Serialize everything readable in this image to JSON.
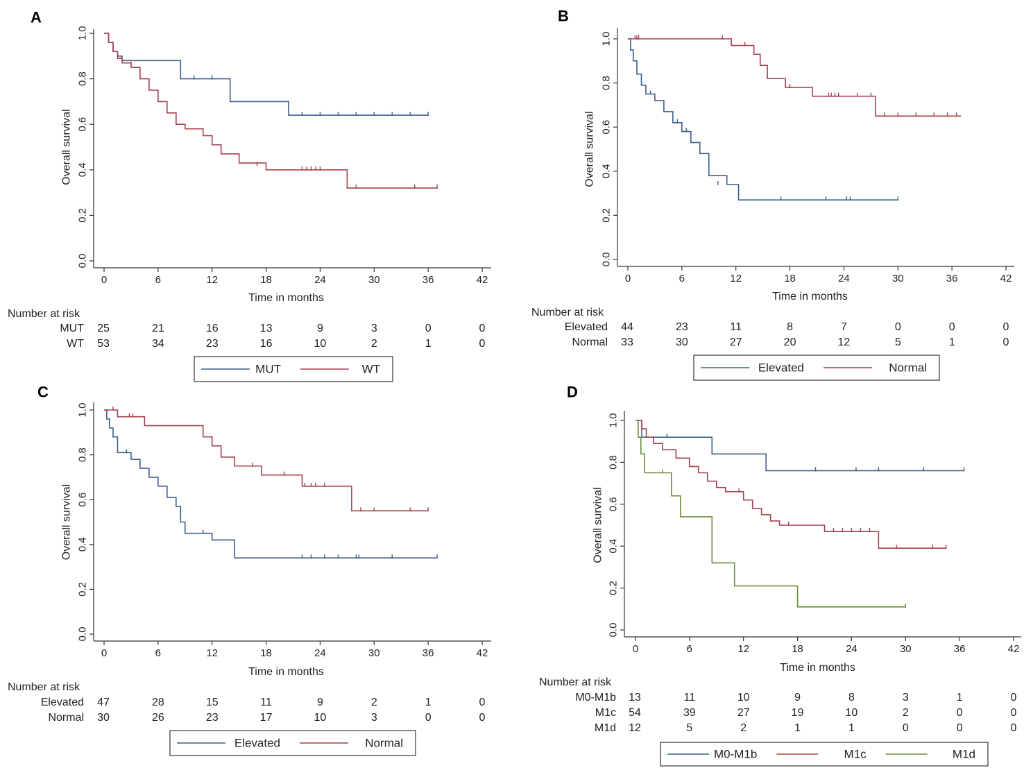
{
  "figure": {
    "x_ticks": [
      0,
      6,
      12,
      18,
      24,
      30,
      36,
      42
    ],
    "y_ticks": [
      "0.0",
      "0.2",
      "0.4",
      "0.6",
      "0.8",
      "1.0"
    ],
    "xlabel": "Time in months",
    "ylabel": "Overall survival",
    "risk_title": "Number at risk"
  },
  "colors": {
    "blue": "#3b5f8a",
    "red": "#a5404f",
    "green": "#6f8c3c"
  },
  "chart_data": [
    {
      "panel": "A",
      "type": "line",
      "xlim": [
        0,
        42
      ],
      "ylim": [
        0,
        1
      ],
      "series": [
        {
          "name": "MUT",
          "color": "blue",
          "x": [
            0,
            0.5,
            1.0,
            1.5,
            2.0,
            8.5,
            14.0,
            20.5,
            36.0
          ],
          "y": [
            1.0,
            0.96,
            0.92,
            0.9,
            0.88,
            0.8,
            0.7,
            0.64,
            0.64
          ],
          "censored": [
            [
              10,
              0.8
            ],
            [
              12,
              0.8
            ],
            [
              22,
              0.64
            ],
            [
              24,
              0.64
            ],
            [
              26,
              0.64
            ],
            [
              28,
              0.64
            ],
            [
              30,
              0.64
            ],
            [
              32,
              0.64
            ],
            [
              34,
              0.64
            ],
            [
              36,
              0.64
            ]
          ]
        },
        {
          "name": "WT",
          "color": "red",
          "x": [
            0,
            0.5,
            1.0,
            1.5,
            2.0,
            3.0,
            4.0,
            5.0,
            6.0,
            7.0,
            8.0,
            9.0,
            11.0,
            12.0,
            13.0,
            15.0,
            18.0,
            27.0,
            37.0
          ],
          "y": [
            1.0,
            0.96,
            0.92,
            0.89,
            0.87,
            0.85,
            0.8,
            0.75,
            0.7,
            0.65,
            0.6,
            0.58,
            0.55,
            0.51,
            0.47,
            0.43,
            0.4,
            0.32,
            0.32
          ],
          "censored": [
            [
              3,
              0.86
            ],
            [
              17,
              0.42
            ],
            [
              22,
              0.4
            ],
            [
              22.5,
              0.4
            ],
            [
              23,
              0.4
            ],
            [
              23.5,
              0.4
            ],
            [
              24,
              0.4
            ],
            [
              28,
              0.32
            ],
            [
              34.5,
              0.32
            ],
            [
              37,
              0.32
            ]
          ]
        }
      ],
      "risk_table": [
        {
          "label": "MUT",
          "values": [
            25,
            21,
            16,
            13,
            9,
            3,
            0,
            0
          ]
        },
        {
          "label": "WT",
          "values": [
            53,
            34,
            23,
            16,
            10,
            2,
            1,
            0
          ]
        }
      ]
    },
    {
      "panel": "B",
      "type": "line",
      "xlim": [
        0,
        42
      ],
      "ylim": [
        0,
        1
      ],
      "series": [
        {
          "name": "Elevated",
          "color": "blue",
          "x": [
            0,
            0.3,
            0.6,
            1.0,
            1.5,
            2.0,
            3.0,
            4.0,
            5.0,
            6.0,
            7.0,
            8.0,
            9.0,
            11.0,
            12.3,
            30.0
          ],
          "y": [
            1.0,
            0.95,
            0.9,
            0.84,
            0.79,
            0.75,
            0.72,
            0.67,
            0.62,
            0.58,
            0.53,
            0.48,
            0.38,
            0.34,
            0.27,
            0.27
          ],
          "censored": [
            [
              2.5,
              0.75
            ],
            [
              5.5,
              0.62
            ],
            [
              6.5,
              0.58
            ],
            [
              10,
              0.34
            ],
            [
              17,
              0.27
            ],
            [
              22,
              0.27
            ],
            [
              24.3,
              0.27
            ],
            [
              24.7,
              0.27
            ],
            [
              30,
              0.27
            ]
          ]
        },
        {
          "name": "Normal",
          "color": "red",
          "x": [
            0,
            11.5,
            14.0,
            14.7,
            15.5,
            17.5,
            20.5,
            27.5,
            37.0
          ],
          "y": [
            1.0,
            0.97,
            0.93,
            0.88,
            0.82,
            0.78,
            0.74,
            0.65,
            0.65
          ],
          "censored": [
            [
              0.8,
              1.0
            ],
            [
              1.0,
              1.0
            ],
            [
              1.2,
              1.0
            ],
            [
              10.5,
              1.0
            ],
            [
              13,
              0.97
            ],
            [
              18,
              0.78
            ],
            [
              22.3,
              0.74
            ],
            [
              22.6,
              0.74
            ],
            [
              23,
              0.74
            ],
            [
              23.4,
              0.74
            ],
            [
              25.5,
              0.74
            ],
            [
              27,
              0.74
            ],
            [
              28.5,
              0.65
            ],
            [
              30,
              0.65
            ],
            [
              32,
              0.65
            ],
            [
              34,
              0.65
            ],
            [
              35.5,
              0.65
            ],
            [
              36.5,
              0.65
            ]
          ]
        }
      ],
      "risk_table": [
        {
          "label": "Elevated",
          "values": [
            44,
            23,
            11,
            8,
            7,
            0,
            0,
            0
          ]
        },
        {
          "label": "Normal",
          "values": [
            33,
            30,
            27,
            20,
            12,
            5,
            1,
            0
          ]
        }
      ]
    },
    {
      "panel": "C",
      "type": "line",
      "xlim": [
        0,
        42
      ],
      "ylim": [
        0,
        1
      ],
      "series": [
        {
          "name": "Elevated",
          "color": "blue",
          "x": [
            0,
            0.3,
            0.6,
            1.0,
            1.5,
            3.0,
            4.0,
            5.0,
            6.0,
            7.0,
            8.0,
            8.5,
            9.0,
            12.0,
            14.5,
            37.0
          ],
          "y": [
            1.0,
            0.96,
            0.92,
            0.88,
            0.81,
            0.78,
            0.74,
            0.7,
            0.66,
            0.61,
            0.57,
            0.5,
            0.45,
            0.42,
            0.34,
            0.34
          ],
          "censored": [
            [
              2.5,
              0.81
            ],
            [
              11,
              0.45
            ],
            [
              22,
              0.34
            ],
            [
              23,
              0.34
            ],
            [
              24.5,
              0.34
            ],
            [
              26,
              0.34
            ],
            [
              28,
              0.34
            ],
            [
              28.3,
              0.34
            ],
            [
              32,
              0.34
            ],
            [
              37,
              0.34
            ]
          ]
        },
        {
          "name": "Normal",
          "color": "red",
          "x": [
            0,
            1.5,
            4.5,
            11.0,
            12.0,
            13.0,
            14.5,
            17.5,
            22.0,
            27.5,
            36.0
          ],
          "y": [
            1.0,
            0.97,
            0.93,
            0.88,
            0.84,
            0.79,
            0.75,
            0.71,
            0.66,
            0.55,
            0.55
          ],
          "censored": [
            [
              1.0,
              1.0
            ],
            [
              2.8,
              0.97
            ],
            [
              3.2,
              0.97
            ],
            [
              16.5,
              0.75
            ],
            [
              20,
              0.71
            ],
            [
              22.3,
              0.66
            ],
            [
              23,
              0.66
            ],
            [
              23.5,
              0.66
            ],
            [
              24.5,
              0.66
            ],
            [
              28.5,
              0.55
            ],
            [
              30,
              0.55
            ],
            [
              34,
              0.55
            ],
            [
              36,
              0.55
            ]
          ]
        }
      ],
      "risk_table": [
        {
          "label": "Elevated",
          "values": [
            47,
            28,
            15,
            11,
            9,
            2,
            1,
            0
          ]
        },
        {
          "label": "Normal",
          "values": [
            30,
            26,
            23,
            17,
            10,
            3,
            0,
            0
          ]
        }
      ]
    },
    {
      "panel": "D",
      "type": "line",
      "xlim": [
        0,
        42
      ],
      "ylim": [
        0,
        1
      ],
      "series": [
        {
          "name": "M0-M1b",
          "color": "blue",
          "x": [
            0,
            0.7,
            8.5,
            14.5,
            36.5
          ],
          "y": [
            1.0,
            0.92,
            0.84,
            0.76,
            0.76
          ],
          "censored": [
            [
              3.5,
              0.92
            ],
            [
              20,
              0.76
            ],
            [
              24.5,
              0.76
            ],
            [
              27,
              0.76
            ],
            [
              32,
              0.76
            ],
            [
              36.5,
              0.76
            ]
          ]
        },
        {
          "name": "M1c",
          "color": "red",
          "x": [
            0,
            0.7,
            1.2,
            2.0,
            3.0,
            4.5,
            6.0,
            7.0,
            8.0,
            9.0,
            10.0,
            12.0,
            13.0,
            14.0,
            15.0,
            16.0,
            18.0,
            21.0,
            27.0,
            34.5
          ],
          "y": [
            1.0,
            0.96,
            0.92,
            0.89,
            0.86,
            0.82,
            0.78,
            0.75,
            0.71,
            0.68,
            0.66,
            0.62,
            0.58,
            0.55,
            0.52,
            0.5,
            0.5,
            0.47,
            0.39,
            0.39
          ],
          "censored": [
            [
              11.5,
              0.66
            ],
            [
              17,
              0.5
            ],
            [
              22,
              0.47
            ],
            [
              23,
              0.47
            ],
            [
              24,
              0.47
            ],
            [
              25,
              0.47
            ],
            [
              26,
              0.47
            ],
            [
              29,
              0.39
            ],
            [
              33,
              0.39
            ],
            [
              34.5,
              0.39
            ]
          ]
        },
        {
          "name": "M1d",
          "color": "green",
          "x": [
            0,
            0.3,
            0.6,
            1.0,
            4.0,
            5.0,
            8.5,
            11.0,
            18.0,
            30.0
          ],
          "y": [
            1.0,
            0.92,
            0.84,
            0.75,
            0.64,
            0.54,
            0.32,
            0.21,
            0.11,
            0.11
          ],
          "censored": [
            [
              3.0,
              0.75
            ],
            [
              30,
              0.11
            ]
          ]
        }
      ],
      "risk_table": [
        {
          "label": "M0-M1b",
          "values": [
            13,
            11,
            10,
            9,
            8,
            3,
            1,
            0
          ]
        },
        {
          "label": "M1c",
          "values": [
            54,
            39,
            27,
            19,
            10,
            2,
            0,
            0
          ]
        },
        {
          "label": "M1d",
          "values": [
            12,
            5,
            2,
            1,
            1,
            0,
            0,
            0
          ]
        }
      ]
    }
  ]
}
